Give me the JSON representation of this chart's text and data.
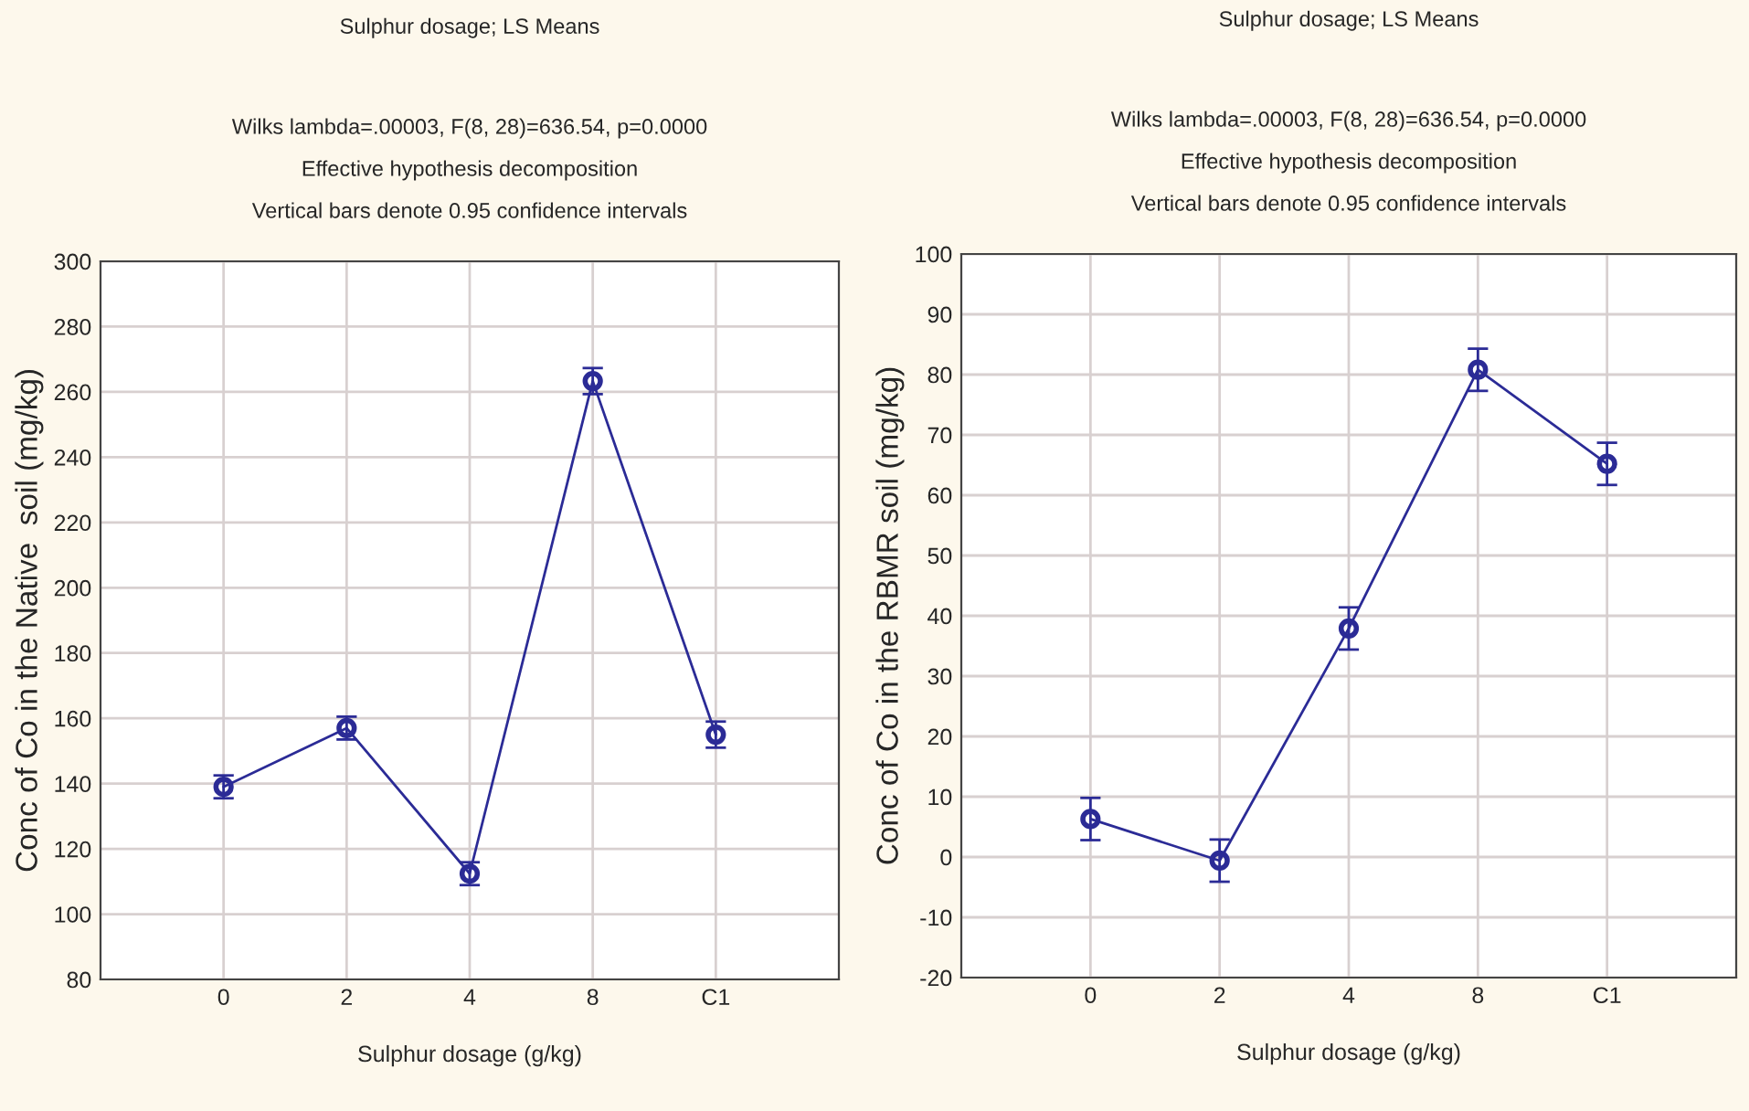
{
  "chart_data": [
    {
      "type": "line",
      "title": "Sulphur dosage; LS Means",
      "subtitle": "Wilks lambda=.00003, F(8, 28)=636.54, p=0.0000\nEffective hypothesis decomposition\nVertical bars denote 0.95 confidence intervals",
      "xlabel": "Sulphur dosage (g/kg)",
      "ylabel": "Conc of Co in the Native  soil (mg/kg)",
      "categories": [
        "0",
        "2",
        "4",
        "8",
        "C1"
      ],
      "series": [
        {
          "color": "#2b2b96",
          "values": [
            139,
            157,
            112.4,
            263.3,
            155
          ],
          "errors": [
            3.5,
            3.5,
            3.5,
            4,
            4
          ]
        }
      ],
      "ylim": [
        80,
        300
      ],
      "yticks": [
        80,
        100,
        120,
        140,
        160,
        180,
        200,
        220,
        240,
        260,
        280,
        300
      ],
      "grid": true,
      "marker": "circle",
      "line_style": "solid"
    },
    {
      "type": "line",
      "title": "Sulphur dosage; LS Means",
      "subtitle": "Wilks lambda=.00003, F(8, 28)=636.54, p=0.0000\nEffective hypothesis decomposition\nVertical bars denote 0.95 confidence intervals",
      "xlabel": "Sulphur dosage (g/kg)",
      "ylabel": "Conc of Co in the RBMR soil (mg/kg)",
      "categories": [
        "0",
        "2",
        "4",
        "8",
        "C1"
      ],
      "series": [
        {
          "color": "#2b2b96",
          "values": [
            6.3,
            -0.6,
            37.9,
            80.8,
            65.2
          ],
          "errors": [
            3.5,
            3.5,
            3.5,
            3.5,
            3.5
          ]
        }
      ],
      "ylim": [
        -20,
        100
      ],
      "yticks": [
        -20,
        -10,
        0,
        10,
        20,
        30,
        40,
        50,
        60,
        70,
        80,
        90,
        100
      ],
      "grid": true,
      "marker": "circle",
      "line_style": "solid"
    }
  ]
}
